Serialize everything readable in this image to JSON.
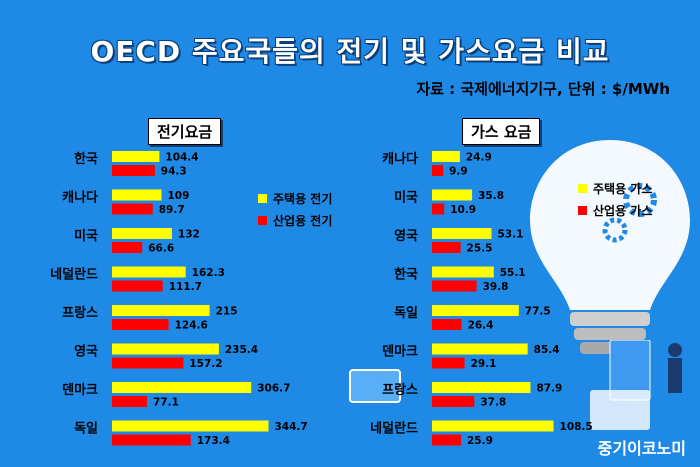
{
  "title": "OECD 주요국들의 전기 및 가스요금 비교",
  "source": "자료 : 국제에너지기구, 단위 : $/MWh",
  "watermark": "중기이코노미",
  "colors": {
    "background": "#1f8ae6",
    "residential": "#ffff00",
    "industrial": "#ff0000"
  },
  "icons": [
    "lightbulb-icon",
    "gear-icon",
    "people-illustration",
    "monitor-icon"
  ],
  "chart_data": [
    {
      "type": "bar",
      "title": "전기요금",
      "orientation": "horizontal",
      "categories": [
        "한국",
        "캐나다",
        "미국",
        "네덜란드",
        "프랑스",
        "영국",
        "덴마크",
        "독일"
      ],
      "series": [
        {
          "name": "주택용 전기",
          "color": "#ffff00",
          "values": [
            104.4,
            109,
            132,
            162.3,
            215,
            235.4,
            306.7,
            344.7
          ]
        },
        {
          "name": "산업용 전기",
          "color": "#ff0000",
          "values": [
            94.3,
            89.7,
            66.6,
            111.7,
            124.6,
            157.2,
            77.1,
            173.4
          ]
        }
      ],
      "legend": "right"
    },
    {
      "type": "bar",
      "title": "가스 요금",
      "orientation": "horizontal",
      "categories": [
        "캐나다",
        "미국",
        "영국",
        "한국",
        "독일",
        "덴마크",
        "프랑스",
        "네덜란드"
      ],
      "series": [
        {
          "name": "주택용 가스",
          "color": "#ffff00",
          "values": [
            24.9,
            35.8,
            53.1,
            55.1,
            77.5,
            85.4,
            87.9,
            108.5
          ]
        },
        {
          "name": "산업용 가스",
          "color": "#ff0000",
          "values": [
            9.9,
            10.9,
            25.5,
            39.8,
            26.4,
            29.1,
            37.8,
            25.9
          ]
        }
      ],
      "legend": "right"
    }
  ]
}
